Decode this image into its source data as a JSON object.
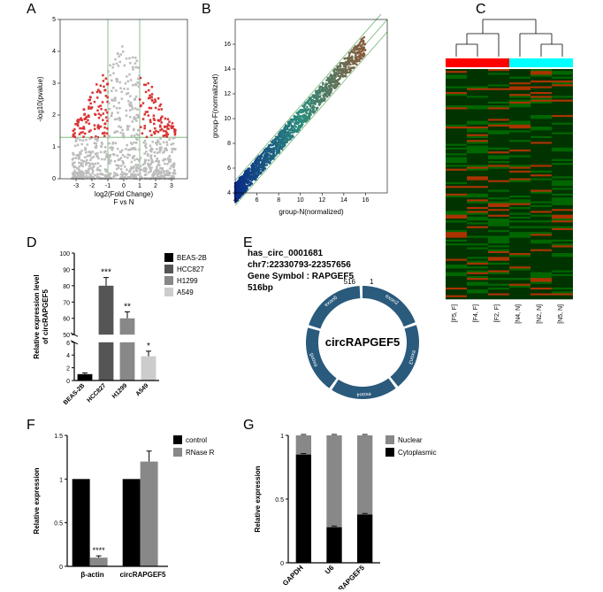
{
  "panelA": {
    "label": "A",
    "xlabel": "log2(Fold Change)\nF vs N",
    "ylabel": "-log10(pvalue)",
    "xlim": [
      -4,
      4
    ],
    "ylim": [
      0,
      5
    ],
    "xticks": [
      -3,
      -2,
      -1,
      0,
      1,
      2,
      3
    ],
    "yticks": [
      0,
      1,
      2,
      3,
      4,
      5
    ],
    "threshold_x_neg": -1,
    "threshold_x_pos": 1,
    "threshold_y": 1.3,
    "point_size": 2.5,
    "grey_color": "#bcbcbc",
    "red_color": "#d93434",
    "grid_color": "#6bb36b"
  },
  "panelB": {
    "label": "B",
    "xlabel": "group-N(normalized)",
    "ylabel": "group-F(normalized)",
    "xlim": [
      4,
      18
    ],
    "ylim": [
      4,
      18
    ],
    "xticks": [
      4,
      6,
      8,
      10,
      12,
      14,
      16
    ],
    "yticks": [
      4,
      6,
      8,
      10,
      12,
      14,
      16
    ],
    "diagonal_offsets": [
      -1,
      0,
      1
    ],
    "color_low": "#0a2a86",
    "color_mid": "#2b8c7c",
    "color_high": "#8b5a3a",
    "grid_color": "#6bb36b"
  },
  "panelC": {
    "label": "C",
    "sample_labels": [
      "[F5, F]",
      "[F4, F]",
      "[F2, F]",
      "[N4, N]",
      "[N2, N]",
      "[N5, N]"
    ],
    "group_colors": [
      "#ff0000",
      "#ff0000",
      "#ff0000",
      "#00ffff",
      "#00ffff",
      "#00ffff"
    ],
    "heatmap_base": "#003300",
    "heatmap_mid": "#006600",
    "heatmap_high": "#aa3300"
  },
  "panelD": {
    "label": "D",
    "ytitle": "Relative expression level\nof circRAPGEF5",
    "categories": [
      "BEAS-2B",
      "HCC827",
      "H1299",
      "A549"
    ],
    "values": [
      1,
      80,
      60,
      3.8
    ],
    "errors": [
      0.2,
      5,
      4,
      0.8
    ],
    "colors": [
      "#000000",
      "#555555",
      "#888888",
      "#cccccc"
    ],
    "sig_labels": [
      "",
      "***",
      "**",
      "*"
    ],
    "yticks_low": [
      0,
      2,
      4,
      6
    ],
    "yticks_high": [
      50,
      60,
      70,
      80,
      90,
      100
    ],
    "legend": [
      "BEAS-2B",
      "HCC827",
      "H1299",
      "A549"
    ],
    "bar_width": 0.7
  },
  "panelE": {
    "label": "E",
    "header_id": "has_circ_0001681",
    "header_loc": "chr7:22330793-22357656",
    "header_gene": "Gene Symbol : RAPGEF5",
    "header_len": "516bp",
    "circle_label": "circRAPGEF5",
    "circle_color": "#2a5a7c",
    "exons": [
      "exon2",
      "exon3",
      "exon4",
      "exon5",
      "exon6"
    ],
    "pos_1": "1",
    "pos_516": "516"
  },
  "panelF": {
    "label": "F",
    "ytitle": "Relative expression",
    "categories": [
      "β-actin",
      "circRAPGEF5"
    ],
    "series": {
      "control": {
        "color": "#000000",
        "values": [
          1.0,
          1.0
        ],
        "errors": [
          0,
          0
        ]
      },
      "rnaser": {
        "color": "#888888",
        "values": [
          0.1,
          1.2
        ],
        "errors": [
          0.02,
          0.12
        ]
      }
    },
    "legend": [
      "control",
      "RNase R"
    ],
    "yticks": [
      0,
      0.5,
      1.0,
      1.5
    ],
    "sig_label": "****",
    "bar_width": 0.35
  },
  "panelG": {
    "label": "G",
    "ytitle": "Relative expression",
    "categories": [
      "GAPDH",
      "U6",
      "circRAPGEF5"
    ],
    "stacks": {
      "Nuclear": {
        "color": "#888888",
        "values": [
          0.15,
          0.72,
          0.62
        ]
      },
      "Cytoplasmic": {
        "color": "#000000",
        "values": [
          0.85,
          0.28,
          0.38
        ]
      }
    },
    "legend": [
      "Nuclear",
      "Cytoplasmic"
    ],
    "yticks": [
      0,
      0.5,
      1.0
    ],
    "bar_width": 0.5
  }
}
